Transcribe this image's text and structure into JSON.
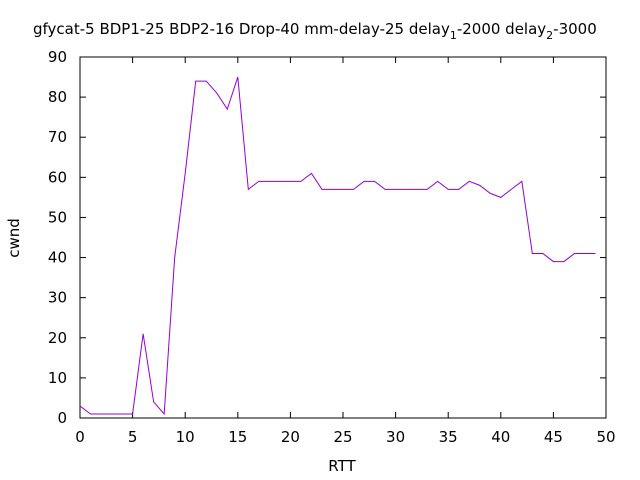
{
  "chart_data": {
    "type": "line",
    "title_parts": {
      "main": "gfycat-5 BDP1-25 BDP2-16 Drop-40 mm-delay-25 delay",
      "sub1": "1",
      "mid": "-2000 delay",
      "sub2": "2",
      "end": "-3000"
    },
    "xlabel": "RTT",
    "ylabel": "cwnd",
    "xlim": [
      0,
      50
    ],
    "ylim": [
      0,
      90
    ],
    "xticks": [
      0,
      5,
      10,
      15,
      20,
      25,
      30,
      35,
      40,
      45,
      50
    ],
    "yticks": [
      0,
      10,
      20,
      30,
      40,
      50,
      60,
      70,
      80,
      90
    ],
    "grid": false,
    "series": [
      {
        "color": "#9400d3",
        "x": [
          0,
          1,
          2,
          3,
          4,
          5,
          6,
          7,
          8,
          9,
          10,
          11,
          12,
          13,
          14,
          15,
          16,
          17,
          18,
          19,
          20,
          21,
          22,
          23,
          24,
          25,
          26,
          27,
          28,
          29,
          30,
          31,
          32,
          33,
          34,
          35,
          36,
          37,
          38,
          39,
          40,
          41,
          42,
          43,
          44,
          45,
          46,
          47,
          48,
          49
        ],
        "y": [
          3,
          1,
          1,
          1,
          1,
          1,
          21,
          4,
          1,
          40,
          61,
          84,
          84,
          81,
          77,
          85,
          57,
          59,
          59,
          59,
          59,
          59,
          61,
          57,
          57,
          57,
          57,
          59,
          59,
          57,
          57,
          57,
          57,
          57,
          59,
          57,
          57,
          59,
          58,
          56,
          55,
          57,
          59,
          41,
          41,
          39,
          39,
          41,
          41,
          41
        ]
      }
    ]
  }
}
